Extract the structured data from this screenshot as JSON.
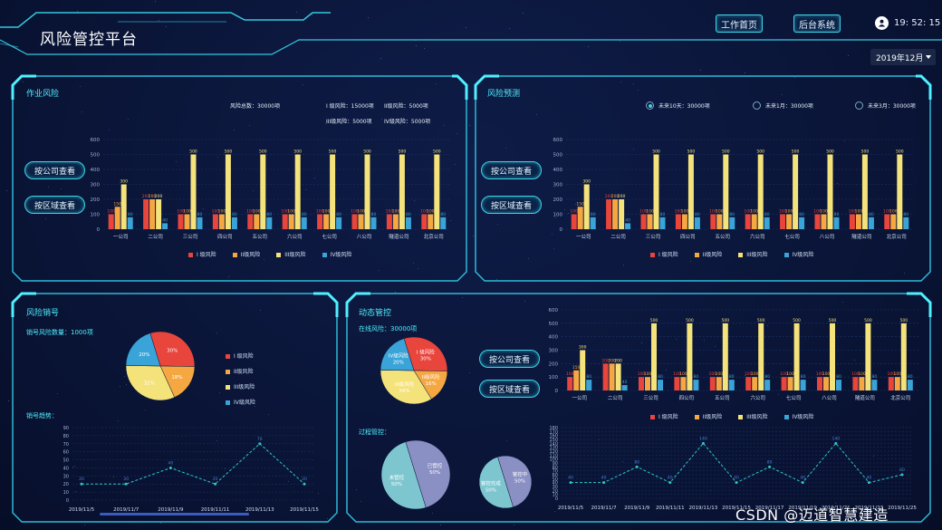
{
  "header": {
    "title": "风险管控平台",
    "work_home": "工作首页",
    "backend": "后台系统",
    "time": "19:  52:  15"
  },
  "date_select": {
    "value": "2019年12月"
  },
  "buttons": {
    "by_company": "按公司查看",
    "by_region": "按区域查看"
  },
  "panel_work": {
    "title": "作业风险",
    "total": "风险总数：30000项",
    "l1": "I 级风险：15000项",
    "l2": "II级风险：5000项",
    "l3": "III级风险：5000项",
    "l4": "IV级风险：5000项"
  },
  "panel_forecast": {
    "title": "风险预测",
    "radios": [
      "未来10天：30000项",
      "未来1月：30000项",
      "未来3月：30000项"
    ]
  },
  "panel_cancel": {
    "title": "风险销号",
    "count": "销号风险数量：1000项",
    "trend": "销号趋势：",
    "pie_legend": [
      "I 级风险",
      "II级风险",
      "III级风险",
      "IV级风险"
    ]
  },
  "panel_dynamic": {
    "title": "动态管控",
    "online": "在线风险：30000项",
    "process": "过程管控："
  },
  "legend": {
    "l1": "I 级风险",
    "l2": "II级风险",
    "l3": "III级风险",
    "l4": "IV级风险"
  },
  "colors": {
    "l1": "#e8453c",
    "l2": "#f5a742",
    "l3": "#f4e27a",
    "l4": "#3aa4d9"
  },
  "chart_data": [
    {
      "type": "bar",
      "title": "作业风险",
      "categories": [
        "一公司",
        "二公司",
        "三公司",
        "四公司",
        "五公司",
        "六公司",
        "七公司",
        "八公司",
        "隧道公司",
        "北京公司"
      ],
      "ylim": [
        0,
        600
      ],
      "yticks": [
        0,
        100,
        200,
        300,
        400,
        500,
        600
      ],
      "series": [
        {
          "name": "I 级风险",
          "values": [
            100,
            200,
            100,
            100,
            100,
            100,
            100,
            100,
            100,
            100
          ]
        },
        {
          "name": "II级风险",
          "values": [
            150,
            200,
            100,
            100,
            100,
            100,
            100,
            100,
            100,
            100
          ]
        },
        {
          "name": "III级风险",
          "values": [
            300,
            200,
            500,
            500,
            500,
            500,
            500,
            500,
            500,
            500
          ]
        },
        {
          "name": "IV级风险",
          "values": [
            80,
            40,
            80,
            80,
            80,
            80,
            80,
            80,
            80,
            80
          ]
        }
      ]
    },
    {
      "type": "bar",
      "title": "风险预测",
      "categories": [
        "一公司",
        "二公司",
        "三公司",
        "四公司",
        "五公司",
        "六公司",
        "七公司",
        "八公司",
        "隧道公司",
        "北京公司"
      ],
      "ylim": [
        0,
        600
      ],
      "yticks": [
        0,
        100,
        200,
        300,
        400,
        500,
        600
      ],
      "series": [
        {
          "name": "I 级风险",
          "values": [
            100,
            200,
            100,
            100,
            100,
            100,
            100,
            100,
            100,
            100
          ]
        },
        {
          "name": "II级风险",
          "values": [
            150,
            200,
            100,
            100,
            100,
            100,
            100,
            100,
            100,
            100
          ]
        },
        {
          "name": "III级风险",
          "values": [
            300,
            200,
            500,
            500,
            500,
            500,
            500,
            500,
            500,
            500
          ]
        },
        {
          "name": "IV级风险",
          "values": [
            80,
            40,
            80,
            80,
            80,
            80,
            80,
            80,
            80,
            80
          ]
        }
      ]
    },
    {
      "type": "bar",
      "title": "动态管控",
      "categories": [
        "一公司",
        "二公司",
        "三公司",
        "四公司",
        "五公司",
        "六公司",
        "七公司",
        "八公司",
        "隧道公司",
        "北京公司"
      ],
      "ylim": [
        0,
        600
      ],
      "yticks": [
        0,
        100,
        200,
        300,
        400,
        500,
        600
      ],
      "series": [
        {
          "name": "I 级风险",
          "values": [
            100,
            200,
            100,
            100,
            100,
            100,
            100,
            100,
            100,
            100
          ]
        },
        {
          "name": "II级风险",
          "values": [
            150,
            200,
            100,
            100,
            100,
            100,
            100,
            100,
            100,
            100
          ]
        },
        {
          "name": "III级风险",
          "values": [
            300,
            200,
            500,
            500,
            500,
            500,
            500,
            500,
            500,
            500
          ]
        },
        {
          "name": "IV级风险",
          "values": [
            80,
            40,
            80,
            80,
            80,
            80,
            80,
            80,
            80,
            80
          ]
        }
      ]
    },
    {
      "type": "pie",
      "title": "风险销号",
      "slices": [
        {
          "name": "I 级风险",
          "value": 30,
          "label": "30%"
        },
        {
          "name": "II级风险",
          "value": 18,
          "label": "18%"
        },
        {
          "name": "III级风险",
          "value": 32,
          "label": "32%"
        },
        {
          "name": "IV级风险",
          "value": 20,
          "label": "20%"
        }
      ]
    },
    {
      "type": "line",
      "title": "销号趋势",
      "x": [
        "2019/11/5",
        "2019/11/7",
        "2019/11/9",
        "2019/11/11",
        "2019/11/13",
        "2019/11/15"
      ],
      "values": [
        20,
        20,
        40,
        20,
        70,
        20
      ],
      "ylim": [
        0,
        90
      ],
      "yticks": [
        0,
        10,
        20,
        30,
        40,
        50,
        60,
        70,
        80,
        90
      ]
    },
    {
      "type": "pie",
      "title": "在线风险",
      "slices": [
        {
          "name": "I 级风险",
          "value": 30,
          "label": "I 级风险\n30%"
        },
        {
          "name": "II级风险",
          "value": 16,
          "label": "II级风险\n16%"
        },
        {
          "name": "III级风险",
          "value": 34,
          "label": "III级风险\n34%"
        },
        {
          "name": "IV级风险",
          "value": 20,
          "label": "IV级风险\n20%"
        }
      ]
    },
    {
      "type": "pie",
      "title": "过程管控-1",
      "slices": [
        {
          "name": "已管控",
          "value": 50,
          "label": "已管控\n50%"
        },
        {
          "name": "未管控",
          "value": 50,
          "label": "未管控\n50%"
        }
      ]
    },
    {
      "type": "pie",
      "title": "过程管控-2",
      "slices": [
        {
          "name": "管控中",
          "value": 50,
          "label": "管控中\n50%"
        },
        {
          "name": "管控完成",
          "value": 50,
          "label": "管控完成\n50%"
        }
      ]
    },
    {
      "type": "line",
      "title": "动态管控趋势",
      "x": [
        "2019/11/5",
        "2019/11/7",
        "2019/11/9",
        "2019/11/11",
        "2019/11/13",
        "2019/11/15",
        "2019/11/17",
        "2019/11/19",
        "2019/11/21",
        "2019/11/23",
        "2019/11/25"
      ],
      "values": [
        40,
        40,
        80,
        40,
        140,
        40,
        80,
        40,
        140,
        40,
        60
      ],
      "ylim": [
        0,
        180
      ],
      "yticks": [
        0,
        10,
        20,
        30,
        40,
        50,
        60,
        70,
        80,
        90,
        100,
        110,
        120,
        130,
        140,
        150,
        160,
        170,
        180
      ]
    }
  ],
  "watermark": "CSDN @迈道智慧建造"
}
